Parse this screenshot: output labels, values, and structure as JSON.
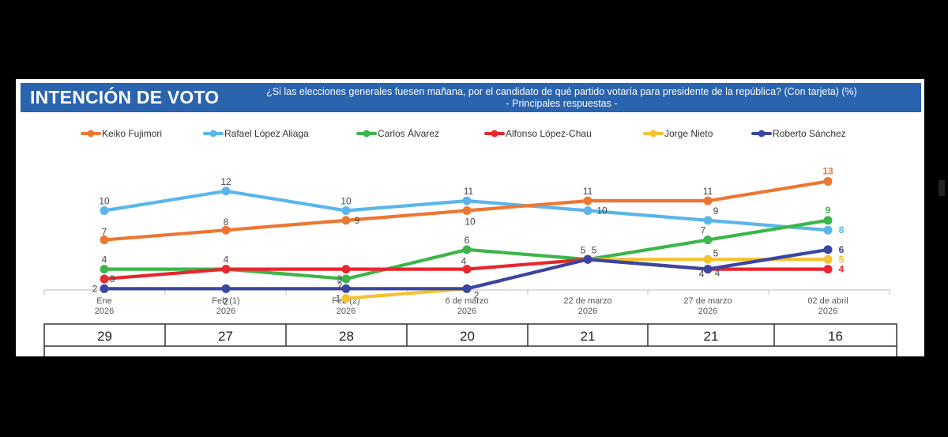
{
  "header": {
    "title": "INTENCIÓN DE VOTO",
    "question_line1": "¿Si las elecciones generales fuesen mañana, por el candidato de qué partido votaría para presidente de la república? (Con tarjeta) (%)",
    "question_line2": "- Principales respuestas -"
  },
  "chart_data": {
    "type": "line",
    "title": "INTENCIÓN DE VOTO",
    "categories": [
      {
        "line1": "Ene",
        "line2": "2026"
      },
      {
        "line1": "Feb (1)",
        "line2": "2026"
      },
      {
        "line1": "Feb (2)",
        "line2": "2026"
      },
      {
        "line1": "6 de marzo",
        "line2": "2026"
      },
      {
        "line1": "22 de marzo",
        "line2": "2026"
      },
      {
        "line1": "27 de marzo",
        "line2": "2026"
      },
      {
        "line1": "02 de abril",
        "line2": "2026"
      }
    ],
    "ylim": [
      0,
      14
    ],
    "grid": false,
    "legend_position": "top",
    "series": [
      {
        "name": "Keiko Fujimori",
        "color": "#ee7633",
        "values": [
          7,
          8,
          9,
          10,
          11,
          11,
          13
        ]
      },
      {
        "name": "Rafael López Aliaga",
        "color": "#5ab6ea",
        "values": [
          10,
          12,
          10,
          11,
          10,
          9,
          8
        ]
      },
      {
        "name": "Carlos Álvarez",
        "color": "#3cb54a",
        "values": [
          4,
          4,
          3,
          6,
          5,
          7,
          9
        ]
      },
      {
        "name": "Alfonso López-Chau",
        "color": "#e8262d",
        "values": [
          3,
          4,
          4,
          4,
          5,
          4,
          4
        ]
      },
      {
        "name": "Jorge Nieto",
        "color": "#f2c232",
        "values": [
          null,
          null,
          1,
          2,
          5,
          5,
          5
        ]
      },
      {
        "name": "Roberto Sánchez",
        "color": "#3a46a3",
        "values": [
          2,
          2,
          2,
          2,
          5,
          4,
          6
        ]
      }
    ],
    "table_row": [
      "29",
      "27",
      "28",
      "20",
      "21",
      "21",
      "16"
    ]
  }
}
